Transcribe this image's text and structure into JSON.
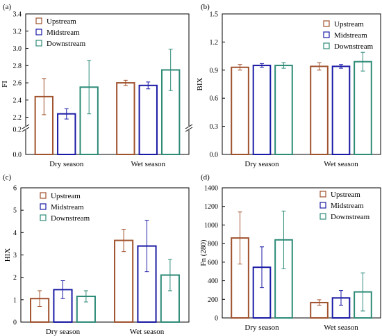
{
  "colors": {
    "Upstream": "#a0522d",
    "Midstream": "#1a1aa6",
    "Downstream": "#2e8b78"
  },
  "chart_data": [
    {
      "type": "bar",
      "panel_label": "(a)",
      "ylabel": "FI",
      "categories": [
        "Dry season",
        "Wet season"
      ],
      "broken_axis": true,
      "ylim_lower": [
        0,
        0.2
      ],
      "ylim_upper": [
        2.1,
        3.4
      ],
      "yticks_lower": [
        "0.0",
        "0.2"
      ],
      "yticks_upper": [
        "2.2",
        "2.4",
        "2.6",
        "2.8",
        "3.0",
        "3.2",
        "3.4"
      ],
      "legend_position": "top-left",
      "series": [
        {
          "name": "Upstream",
          "values": [
            2.44,
            2.6
          ],
          "errors": [
            0.21,
            0.03
          ]
        },
        {
          "name": "Midstream",
          "values": [
            2.24,
            2.57
          ],
          "errors": [
            0.06,
            0.04
          ]
        },
        {
          "name": "Downstream",
          "values": [
            2.55,
            2.75
          ],
          "errors": [
            0.31,
            0.24
          ]
        }
      ]
    },
    {
      "type": "bar",
      "panel_label": "(b)",
      "ylabel": "BIX",
      "categories": [
        "Dry season",
        "Wet season"
      ],
      "ylim": [
        0,
        1.5
      ],
      "yticks": [
        "0.0",
        "0.3",
        "0.6",
        "0.9",
        "1.2",
        "1.5"
      ],
      "legend_position": "top-right",
      "series": [
        {
          "name": "Upstream",
          "values": [
            0.93,
            0.94
          ],
          "errors": [
            0.03,
            0.04
          ]
        },
        {
          "name": "Midstream",
          "values": [
            0.95,
            0.94
          ],
          "errors": [
            0.02,
            0.02
          ]
        },
        {
          "name": "Downstream",
          "values": [
            0.95,
            0.99
          ],
          "errors": [
            0.03,
            0.1
          ]
        }
      ]
    },
    {
      "type": "bar",
      "panel_label": "(c)",
      "ylabel": "HIX",
      "categories": [
        "Dry season",
        "Wet season"
      ],
      "ylim": [
        0,
        6
      ],
      "yticks": [
        "0",
        "1",
        "2",
        "3",
        "4",
        "5",
        "6"
      ],
      "legend_position": "top-left",
      "series": [
        {
          "name": "Upstream",
          "values": [
            1.05,
            3.65
          ],
          "errors": [
            0.35,
            0.5
          ]
        },
        {
          "name": "Midstream",
          "values": [
            1.45,
            3.4
          ],
          "errors": [
            0.4,
            1.15
          ]
        },
        {
          "name": "Downstream",
          "values": [
            1.15,
            2.1
          ],
          "errors": [
            0.25,
            0.7
          ]
        }
      ]
    },
    {
      "type": "bar",
      "panel_label": "(d)",
      "ylabel": "Fn (280)",
      "categories": [
        "Dry season",
        "Wet season"
      ],
      "ylim": [
        0,
        1400
      ],
      "yticks": [
        "0",
        "200",
        "400",
        "600",
        "800",
        "1000",
        "1200",
        "1400"
      ],
      "legend_position": "top-right",
      "series": [
        {
          "name": "Upstream",
          "values": [
            860,
            165
          ],
          "errors": [
            280,
            30
          ]
        },
        {
          "name": "Midstream",
          "values": [
            545,
            215
          ],
          "errors": [
            220,
            80
          ]
        },
        {
          "name": "Downstream",
          "values": [
            840,
            280
          ],
          "errors": [
            310,
            205
          ]
        }
      ]
    }
  ]
}
